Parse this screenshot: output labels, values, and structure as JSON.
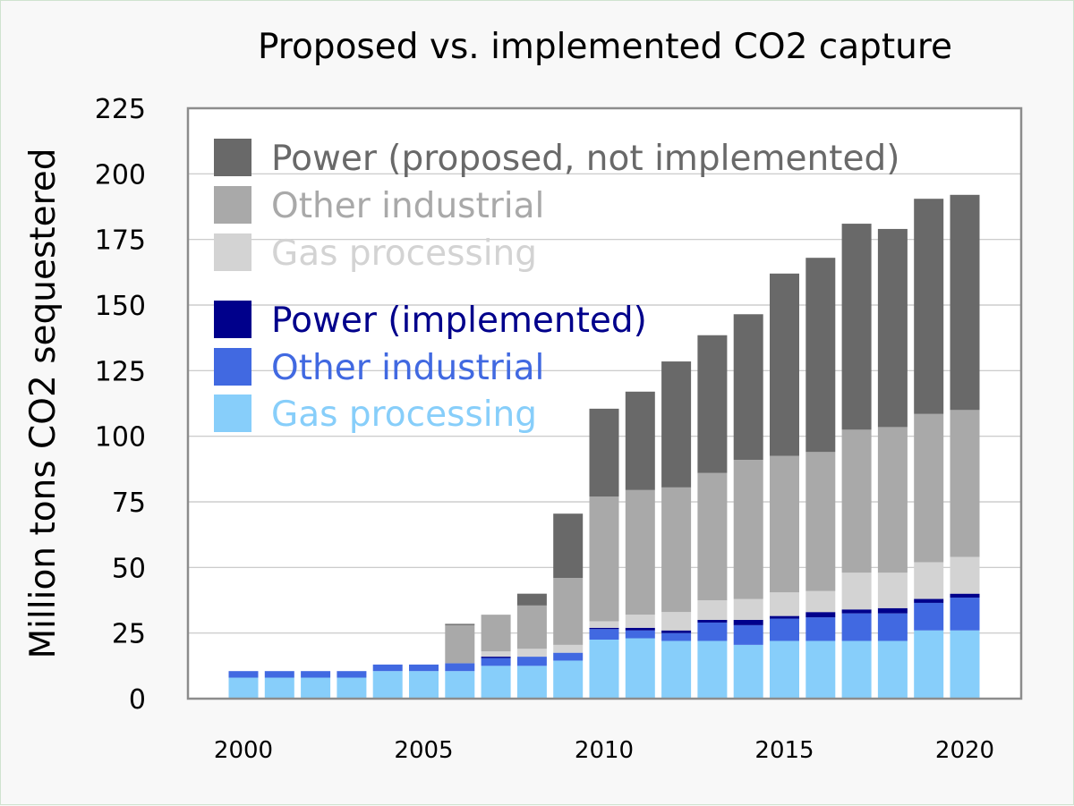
{
  "chart_data": {
    "type": "bar",
    "stacked": true,
    "title": "Proposed vs. implemented CO2 capture",
    "xlabel": "",
    "ylabel": "Million tons CO2 sequestered",
    "ylim": [
      0,
      225
    ],
    "yticks": [
      "0",
      "25",
      "50",
      "75",
      "100",
      "125",
      "150",
      "175",
      "200",
      "225"
    ],
    "xtick_labels": [
      {
        "label": "2000",
        "year": 2000
      },
      {
        "label": "2005",
        "year": 2005
      },
      {
        "label": "2010",
        "year": 2010
      },
      {
        "label": "2015",
        "year": 2015
      },
      {
        "label": "2020",
        "year": 2020
      }
    ],
    "grid": true,
    "legend_position": "top-left",
    "categories": [
      2000,
      2001,
      2002,
      2003,
      2004,
      2005,
      2006,
      2007,
      2008,
      2009,
      2010,
      2011,
      2012,
      2013,
      2014,
      2015,
      2016,
      2017,
      2018,
      2019,
      2020
    ],
    "series": [
      {
        "name": "Gas processing",
        "group": "implemented",
        "color": "#87cefa",
        "values": [
          8,
          8,
          8,
          8,
          10.5,
          10.5,
          10.5,
          12.5,
          12.5,
          14.5,
          22.5,
          23,
          22,
          22,
          20.5,
          22,
          22,
          22,
          22,
          26,
          26
        ]
      },
      {
        "name": "Other industrial",
        "group": "implemented",
        "color": "#4169e1",
        "values": [
          2.5,
          2.5,
          2.5,
          2.5,
          2.5,
          2.5,
          3,
          3,
          3.5,
          3,
          4,
          3,
          3,
          7,
          7.5,
          8.5,
          9,
          10.5,
          10.5,
          10.5,
          12.5
        ]
      },
      {
        "name": "Power (implemented)",
        "group": "implemented",
        "color": "#00008b",
        "values": [
          0,
          0,
          0,
          0,
          0,
          0,
          0,
          0.5,
          0,
          0,
          0.5,
          1,
          1,
          1,
          2,
          1,
          2,
          1.5,
          2,
          1.5,
          1.5
        ]
      },
      {
        "name": "Gas processing",
        "group": "proposed",
        "color": "#d3d3d3",
        "values": [
          0,
          0,
          0,
          0,
          0,
          0,
          0,
          2,
          3,
          3,
          2.5,
          5,
          7,
          7.5,
          8,
          9,
          8,
          14,
          13.5,
          14,
          14
        ]
      },
      {
        "name": "Other industrial",
        "group": "proposed",
        "color": "#a9a9a9",
        "values": [
          0,
          0,
          0,
          0,
          0,
          0,
          14.5,
          14,
          16.5,
          25.5,
          47.5,
          47.5,
          47.5,
          48.5,
          53,
          52,
          53,
          54.5,
          55.5,
          56.5,
          56
        ]
      },
      {
        "name": "Power (proposed, not implemented)",
        "group": "proposed",
        "color": "#696969",
        "values": [
          0,
          0,
          0,
          0,
          0,
          0,
          0.5,
          0,
          4.5,
          24.5,
          33.5,
          37.5,
          48,
          52.5,
          55.5,
          69.5,
          74,
          78.5,
          75.5,
          82,
          82
        ]
      }
    ],
    "legend": [
      {
        "name": "Power (proposed, not implemented)",
        "color": "#696969"
      },
      {
        "name": "Other industrial",
        "color": "#a9a9a9"
      },
      {
        "name": "Gas processing",
        "color": "#d3d3d3"
      },
      {
        "name": "Power (implemented)",
        "color": "#00008b"
      },
      {
        "name": "Other industrial",
        "color": "#4169e1"
      },
      {
        "name": "Gas processing",
        "color": "#87cefa"
      }
    ]
  }
}
